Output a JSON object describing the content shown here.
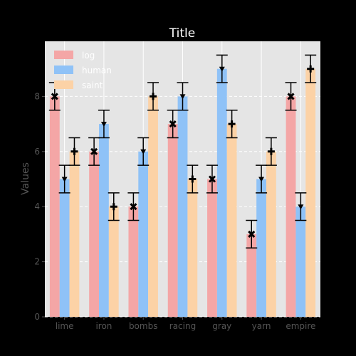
{
  "chart_data": {
    "type": "bar",
    "title": "Title",
    "xlabel": "",
    "ylabel": "Values",
    "ylim": [
      0,
      10
    ],
    "yticks": [
      0,
      2,
      4,
      6,
      8
    ],
    "categories": [
      "lime",
      "iron",
      "bombs",
      "racing",
      "gray",
      "yarn",
      "empire"
    ],
    "series": [
      {
        "name": "log",
        "color": "#f4a6a6",
        "values": [
          8,
          6,
          4,
          7,
          5,
          3,
          8
        ],
        "error": 0.5,
        "marker": "x"
      },
      {
        "name": "human",
        "color": "#8fc2f7",
        "values": [
          5,
          7,
          6,
          8,
          9,
          5,
          4
        ],
        "error": 0.5,
        "marker": "v"
      },
      {
        "name": "saint",
        "color": "#fcd2a6",
        "values": [
          6,
          4,
          8,
          5,
          7,
          6,
          9
        ],
        "error": 0.5,
        "marker": "+"
      }
    ],
    "grid": true,
    "legend_position": "top-left",
    "colors": {
      "background": "#000000",
      "plot_background": "#e5e5e5",
      "grid": "#ffffff",
      "tick_text": "#555555",
      "title_text": "#ffffff"
    }
  }
}
